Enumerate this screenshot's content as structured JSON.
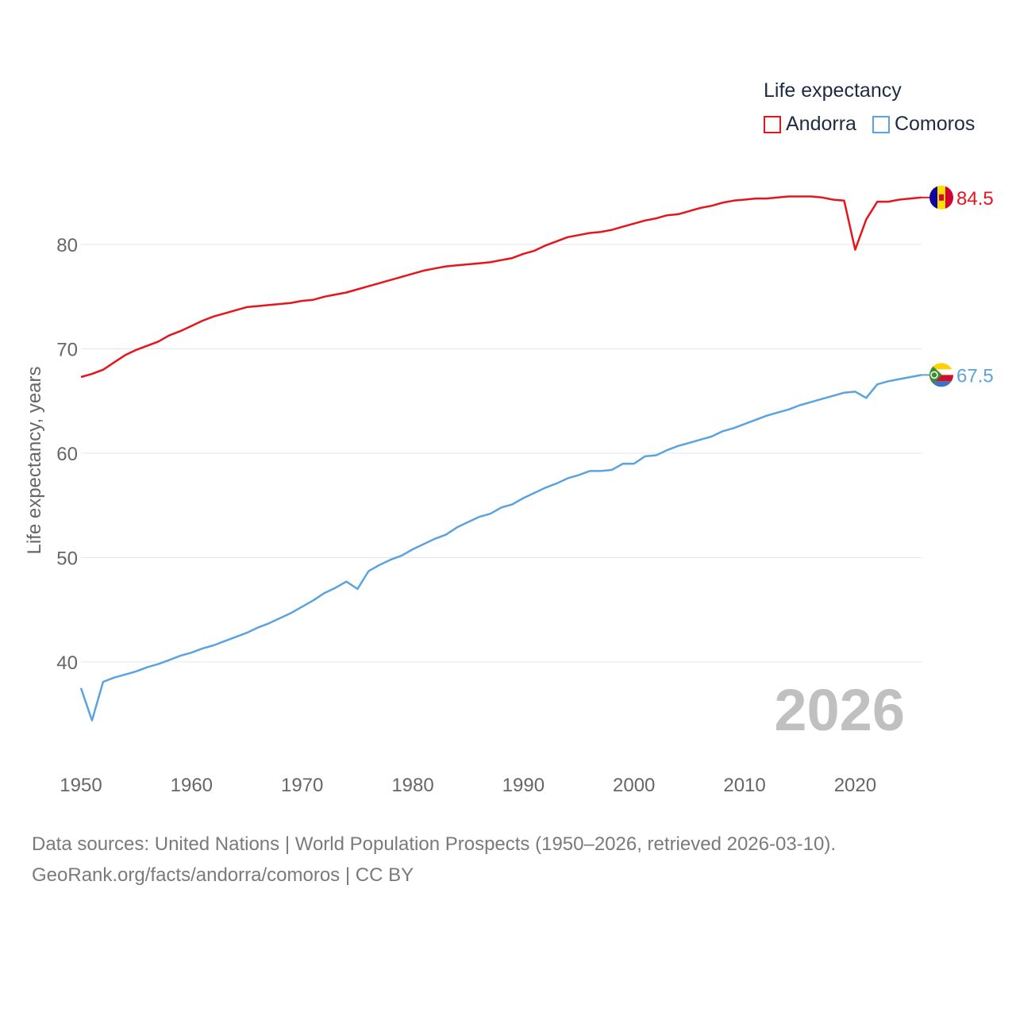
{
  "legend": {
    "title": "Life expectancy",
    "items": [
      {
        "label": "Andorra",
        "color": "#e8141c"
      },
      {
        "label": "Comoros",
        "color": "#5ba3e0"
      }
    ]
  },
  "footer": {
    "line1": "Data sources: United Nations | World Population Prospects (1950–2026, retrieved 2026-03-10).",
    "line2": "GeoRank.org/facts/andorra/comoros | CC BY"
  },
  "chart_data": {
    "type": "line",
    "title": "Life expectancy",
    "xlabel": "",
    "ylabel": "Life expectancy, years",
    "year_label": "2026",
    "xlim": [
      1950,
      2026
    ],
    "ylim": [
      32,
      87
    ],
    "x_ticks": [
      1950,
      1960,
      1970,
      1980,
      1990,
      2000,
      2010,
      2020
    ],
    "y_ticks": [
      40,
      50,
      60,
      70,
      80
    ],
    "grid": true,
    "legend_position": "top-right",
    "x": [
      1950,
      1951,
      1952,
      1953,
      1954,
      1955,
      1956,
      1957,
      1958,
      1959,
      1960,
      1961,
      1962,
      1963,
      1964,
      1965,
      1966,
      1967,
      1968,
      1969,
      1970,
      1971,
      1972,
      1973,
      1974,
      1975,
      1976,
      1977,
      1978,
      1979,
      1980,
      1981,
      1982,
      1983,
      1984,
      1985,
      1986,
      1987,
      1988,
      1989,
      1990,
      1991,
      1992,
      1993,
      1994,
      1995,
      1996,
      1997,
      1998,
      1999,
      2000,
      2001,
      2002,
      2003,
      2004,
      2005,
      2006,
      2007,
      2008,
      2009,
      2010,
      2011,
      2012,
      2013,
      2014,
      2015,
      2016,
      2017,
      2018,
      2019,
      2020,
      2021,
      2022,
      2023,
      2024,
      2025,
      2026
    ],
    "series": [
      {
        "name": "Andorra",
        "color": "#e8141c",
        "end_label": "84.5",
        "values": [
          67.3,
          67.6,
          68.0,
          68.7,
          69.4,
          69.9,
          70.3,
          70.7,
          71.3,
          71.7,
          72.2,
          72.7,
          73.1,
          73.4,
          73.7,
          74.0,
          74.1,
          74.2,
          74.3,
          74.4,
          74.6,
          74.7,
          75.0,
          75.2,
          75.4,
          75.7,
          76.0,
          76.3,
          76.6,
          76.9,
          77.2,
          77.5,
          77.7,
          77.9,
          78.0,
          78.1,
          78.2,
          78.3,
          78.5,
          78.7,
          79.1,
          79.4,
          79.9,
          80.3,
          80.7,
          80.9,
          81.1,
          81.2,
          81.4,
          81.7,
          82.0,
          82.3,
          82.5,
          82.8,
          82.9,
          83.2,
          83.5,
          83.7,
          84.0,
          84.2,
          84.3,
          84.4,
          84.4,
          84.5,
          84.6,
          84.6,
          84.6,
          84.5,
          84.3,
          84.2,
          79.5,
          82.4,
          84.1,
          84.1,
          84.3,
          84.4,
          84.5
        ]
      },
      {
        "name": "Comoros",
        "color": "#5ba3e0",
        "end_label": "67.5",
        "values": [
          37.5,
          34.4,
          38.1,
          38.5,
          38.8,
          39.1,
          39.5,
          39.8,
          40.2,
          40.6,
          40.9,
          41.3,
          41.6,
          42.0,
          42.4,
          42.8,
          43.3,
          43.7,
          44.2,
          44.7,
          45.3,
          45.9,
          46.6,
          47.1,
          47.7,
          47.0,
          48.7,
          49.3,
          49.8,
          50.2,
          50.8,
          51.3,
          51.8,
          52.2,
          52.9,
          53.4,
          53.9,
          54.2,
          54.8,
          55.1,
          55.7,
          56.2,
          56.7,
          57.1,
          57.6,
          57.9,
          58.3,
          58.3,
          58.4,
          59.0,
          59.0,
          59.7,
          59.8,
          60.3,
          60.7,
          61.0,
          61.3,
          61.6,
          62.1,
          62.4,
          62.8,
          63.2,
          63.6,
          63.9,
          64.2,
          64.6,
          64.9,
          65.2,
          65.5,
          65.8,
          65.9,
          65.3,
          66.6,
          66.9,
          67.1,
          67.3,
          67.5
        ]
      }
    ]
  }
}
